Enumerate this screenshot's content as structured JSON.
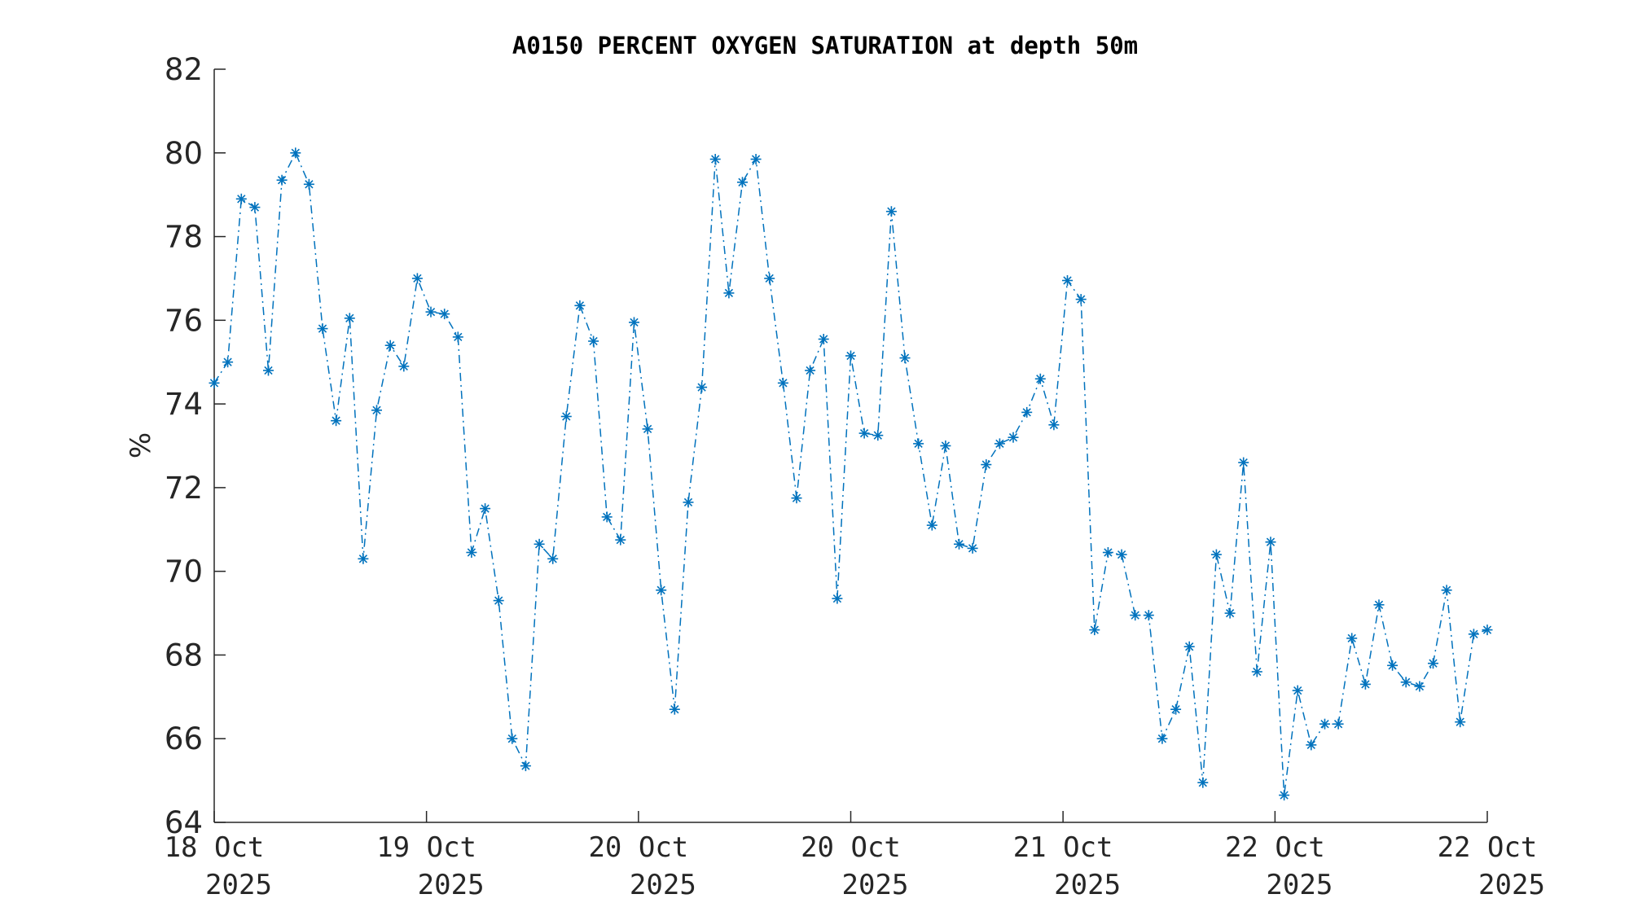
{
  "chart_data": {
    "type": "line",
    "title": "A0150 PERCENT OXYGEN SATURATION at depth 50m",
    "ylabel": "%",
    "xlabel": "",
    "ylim": [
      64,
      82
    ],
    "yticks": [
      64,
      66,
      68,
      70,
      72,
      74,
      76,
      78,
      80,
      82
    ],
    "xlim": [
      0,
      4.0
    ],
    "xticks": [
      {
        "x": 0.0,
        "line1": "18 Oct",
        "line2": "2025"
      },
      {
        "x": 0.667,
        "line1": "19 Oct",
        "line2": "2025"
      },
      {
        "x": 1.333,
        "line1": "20 Oct",
        "line2": "2025"
      },
      {
        "x": 2.0,
        "line1": "20 Oct",
        "line2": "2025"
      },
      {
        "x": 2.667,
        "line1": "21 Oct",
        "line2": "2025"
      },
      {
        "x": 3.333,
        "line1": "22 Oct",
        "line2": "2025"
      },
      {
        "x": 4.0,
        "line1": "22 Oct",
        "line2": "2025"
      }
    ],
    "grid": false,
    "line_style": "dash-dot",
    "marker": "asterisk",
    "color": "#0072BD",
    "series": [
      {
        "values": [
          74.5,
          75.0,
          78.9,
          78.7,
          74.8,
          79.35,
          80.0,
          79.25,
          75.8,
          73.6,
          76.05,
          70.3,
          73.85,
          75.4,
          74.9,
          77.0,
          76.2,
          76.15,
          75.6,
          70.45,
          71.5,
          69.3,
          66.0,
          65.35,
          70.65,
          70.3,
          73.7,
          76.35,
          75.5,
          71.3,
          70.75,
          75.95,
          73.4,
          69.55,
          66.7,
          71.65,
          74.4,
          79.85,
          76.65,
          79.3,
          79.85,
          77.0,
          74.5,
          71.75,
          74.8,
          75.55,
          69.35,
          75.15,
          73.3,
          73.25,
          78.6,
          75.1,
          73.05,
          71.1,
          73.0,
          70.65,
          70.55,
          72.55,
          73.05,
          73.2,
          73.8,
          74.6,
          73.5,
          76.95,
          76.5,
          68.6,
          70.45,
          70.4,
          68.95,
          68.95,
          66.0,
          66.7,
          68.2,
          64.95,
          70.4,
          69.0,
          72.6,
          67.6,
          70.7,
          64.65,
          67.15,
          65.85,
          66.35,
          66.35,
          68.4,
          67.3,
          69.2,
          67.75,
          67.35,
          67.25,
          67.8,
          69.55,
          66.4,
          68.5,
          68.6
        ]
      }
    ]
  }
}
